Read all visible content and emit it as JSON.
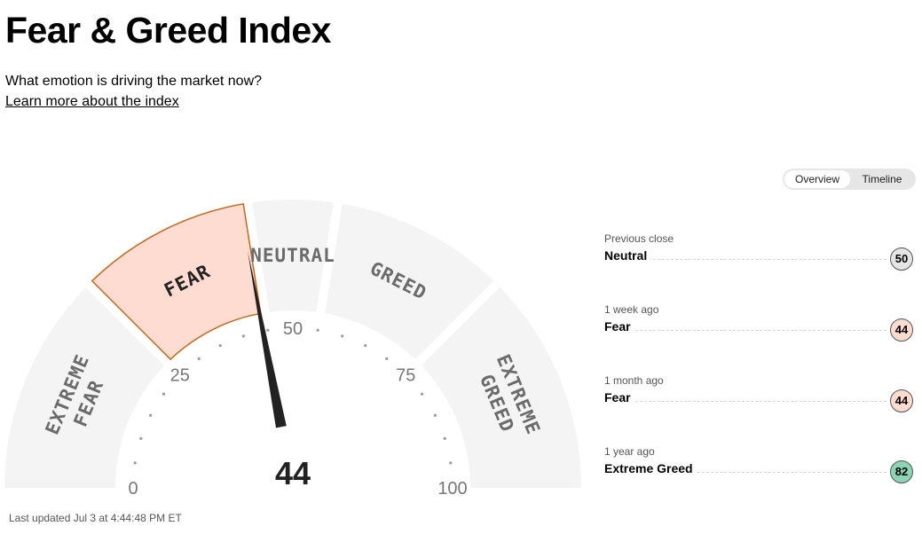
{
  "header": {
    "title": "Fear & Greed Index",
    "subtitle": "What emotion is driving the market now?",
    "learn_more": "Learn more about the index"
  },
  "view_toggle": {
    "options": [
      "Overview",
      "Timeline"
    ],
    "selected": "Overview"
  },
  "gauge": {
    "value": 44,
    "value_label": "44",
    "active_segment": "FEAR",
    "segments": [
      {
        "label_lines": [
          "EXTREME",
          "FEAR"
        ],
        "range": [
          0,
          25
        ]
      },
      {
        "label_lines": [
          "FEAR"
        ],
        "range": [
          25,
          45
        ]
      },
      {
        "label_lines": [
          "NEUTRAL"
        ],
        "range": [
          45,
          55
        ]
      },
      {
        "label_lines": [
          "GREED"
        ],
        "range": [
          55,
          75
        ]
      },
      {
        "label_lines": [
          "EXTREME",
          "GREED"
        ],
        "range": [
          75,
          100
        ]
      }
    ],
    "tick_labels": [
      "0",
      "25",
      "50",
      "75",
      "100"
    ],
    "colors": {
      "segment_fill": "#f4f4f4",
      "active_fill": "#ffdcd2",
      "active_stroke": "#c5671b",
      "label_color": "#6b6b6b",
      "needle": "#222222"
    }
  },
  "last_updated": "Last updated Jul 3 at 4:44:48 PM ET",
  "history": [
    {
      "when": "Previous close",
      "rating": "Neutral",
      "value": "50",
      "color": "#e5e5e5"
    },
    {
      "when": "1 week ago",
      "rating": "Fear",
      "value": "44",
      "color": "#fcdbd1"
    },
    {
      "when": "1 month ago",
      "rating": "Fear",
      "value": "44",
      "color": "#fcdbd1"
    },
    {
      "when": "1 year ago",
      "rating": "Extreme Greed",
      "value": "82",
      "color": "#8cd4b4"
    }
  ]
}
